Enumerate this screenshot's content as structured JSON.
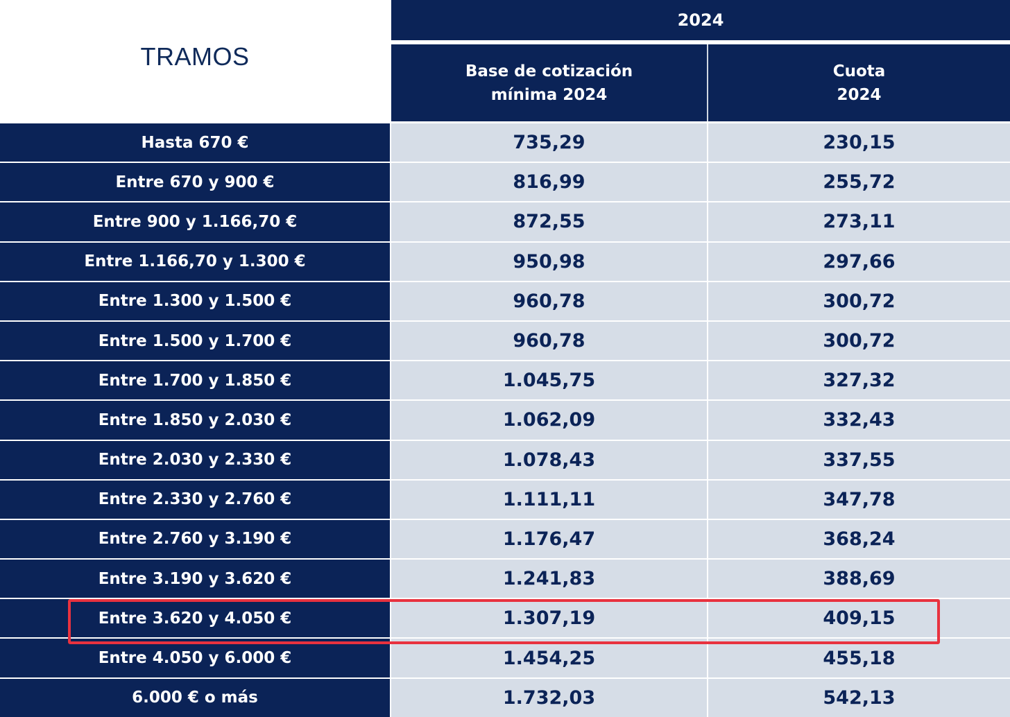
{
  "header": {
    "tramos_label": "TRAMOS",
    "year": "2024",
    "base_line1": "Base de cotización",
    "base_line2": "mínima 2024",
    "cuota_line1": "Cuota",
    "cuota_line2": "2024"
  },
  "rows": [
    {
      "label": "Hasta 670 €",
      "base": "735,29",
      "cuota": "230,15"
    },
    {
      "label": "Entre 670 y 900 €",
      "base": "816,99",
      "cuota": "255,72"
    },
    {
      "label": "Entre 900 y 1.166,70 €",
      "base": "872,55",
      "cuota": "273,11"
    },
    {
      "label": "Entre 1.166,70 y 1.300 €",
      "base": "950,98",
      "cuota": "297,66"
    },
    {
      "label": "Entre 1.300 y 1.500 €",
      "base": "960,78",
      "cuota": "300,72"
    },
    {
      "label": "Entre 1.500 y 1.700 €",
      "base": "960,78",
      "cuota": "300,72"
    },
    {
      "label": "Entre 1.700 y 1.850 €",
      "base": "1.045,75",
      "cuota": "327,32"
    },
    {
      "label": "Entre 1.850 y 2.030 €",
      "base": "1.062,09",
      "cuota": "332,43"
    },
    {
      "label": "Entre 2.030 y 2.330 €",
      "base": "1.078,43",
      "cuota": "337,55"
    },
    {
      "label": "Entre 2.330 y 2.760 €",
      "base": "1.111,11",
      "cuota": "347,78"
    },
    {
      "label": "Entre 2.760 y 3.190 €",
      "base": "1.176,47",
      "cuota": "368,24"
    },
    {
      "label": "Entre 3.190 y 3.620 €",
      "base": "1.241,83",
      "cuota": "388,69"
    },
    {
      "label": "Entre 3.620 y 4.050 €",
      "base": "1.307,19",
      "cuota": "409,15"
    },
    {
      "label": "Entre 4.050 y 6.000 €",
      "base": "1.454,25",
      "cuota": "455,18"
    },
    {
      "label": "6.000 € o más",
      "base": "1.732,03",
      "cuota": "542,13"
    }
  ],
  "highlighted_row_index": 12,
  "colors": {
    "header_navy": "#0b2357",
    "cell_light": "#d6dde7",
    "highlight_red": "#e8323f"
  }
}
